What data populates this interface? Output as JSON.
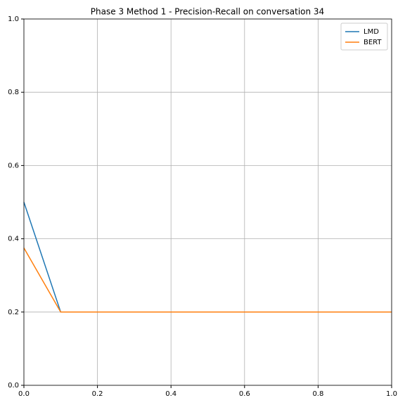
{
  "chart_data": {
    "type": "line",
    "title": "Phase 3 Method 1 - Precision-Recall on conversation 34",
    "x": [
      0,
      0.1,
      1.0
    ],
    "series": [
      {
        "name": "LMD",
        "color": "#1f77b4",
        "values": [
          0.5,
          0.2,
          0.2
        ]
      },
      {
        "name": "BERT",
        "color": "#ff7f0e",
        "values": [
          0.375,
          0.2,
          0.2
        ]
      }
    ],
    "xlim": [
      0,
      1
    ],
    "ylim": [
      0,
      1
    ],
    "xticks": [
      {
        "value": 0,
        "label": "0.0"
      },
      {
        "value": 0.2,
        "label": "0.2"
      },
      {
        "value": 0.4,
        "label": "0.4"
      },
      {
        "value": 0.6,
        "label": "0.6"
      },
      {
        "value": 0.8,
        "label": "0.8"
      },
      {
        "value": 1,
        "label": "1.0"
      }
    ],
    "yticks": [
      {
        "value": 0,
        "label": "0.0"
      },
      {
        "value": 0.2,
        "label": "0.2"
      },
      {
        "value": 0.4,
        "label": "0.4"
      },
      {
        "value": 0.6,
        "label": "0.6"
      },
      {
        "value": 0.8,
        "label": "0.8"
      },
      {
        "value": 1,
        "label": "1.0"
      }
    ],
    "grid": true,
    "legend": "upper-right"
  }
}
